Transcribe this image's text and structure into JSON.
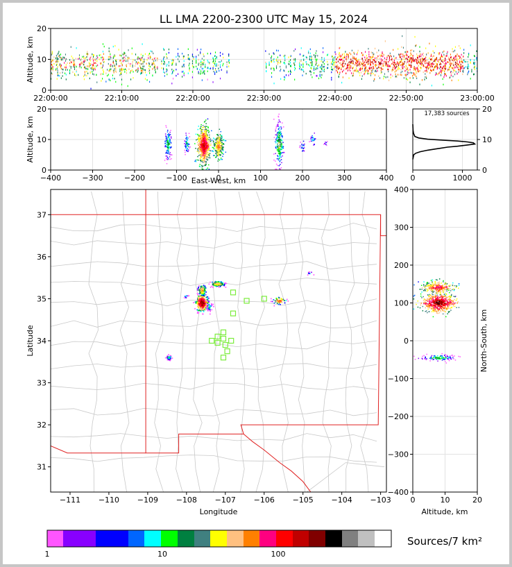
{
  "title": "LL LMA 2200-2300 UTC May 15, 2024",
  "time_panel": {
    "ylabel": "Altitude, km",
    "yticks": [
      "0",
      "10",
      "20"
    ],
    "xticks": [
      "22:00:00",
      "22:10:00",
      "22:20:00",
      "22:30:00",
      "22:40:00",
      "22:50:00",
      "23:00:00"
    ]
  },
  "ew_panel": {
    "ylabel": "Altitude, km",
    "xlabel": "East-West, km",
    "yticks": [
      "0",
      "10",
      "20"
    ],
    "xticks": [
      "−400",
      "−300",
      "−200",
      "−100",
      "0",
      "100",
      "200",
      "300",
      "400"
    ]
  },
  "hist_panel": {
    "annotation": "17,383 sources",
    "xticks": [
      "0",
      "1000"
    ],
    "yticks": [
      "0",
      "10",
      "20"
    ]
  },
  "map_panel": {
    "xlabel": "Longitude",
    "ylabel": "Latitude",
    "xticks": [
      "−111",
      "−110",
      "−109",
      "−108",
      "−107",
      "−106",
      "−105",
      "−104",
      "−103"
    ],
    "yticks": [
      "31",
      "32",
      "33",
      "34",
      "35",
      "36",
      "37"
    ]
  },
  "ns_panel": {
    "xlabel": "Altitude, km",
    "ylabel": "North-South, km",
    "xticks": [
      "0",
      "10",
      "20"
    ],
    "yticks": [
      "−400",
      "−300",
      "−200",
      "−100",
      "0",
      "100",
      "200",
      "300",
      "400"
    ]
  },
  "colorbar": {
    "label": "Sources/7 km²",
    "tick_labels": [
      "1",
      "10",
      "100"
    ],
    "colors": [
      "#ff55ff",
      "#8800ff",
      "#0000ff",
      "#0066ff",
      "#00ffff",
      "#00ff00",
      "#008040",
      "#408080",
      "#ffff00",
      "#ffc080",
      "#ff8000",
      "#ff0080",
      "#ff0000",
      "#c00000",
      "#800000",
      "#000000",
      "#808080",
      "#c0c0c0",
      "#ffffff"
    ]
  },
  "chart_data": [
    {
      "type": "scatter",
      "panel": "altitude-time",
      "title": "LL LMA 2200-2300 UTC May 15, 2024",
      "ylabel": "Altitude, km",
      "xlim": [
        "22:00:00",
        "23:00:00"
      ],
      "ylim": [
        0,
        20
      ],
      "active_time_ranges": [
        [
          "22:00:00",
          "22:25:30"
        ],
        [
          "22:30:00",
          "23:00:00"
        ]
      ],
      "typical_altitude_km": [
        5,
        12
      ]
    },
    {
      "type": "scatter",
      "panel": "altitude-east-west",
      "xlabel": "East-West, km",
      "ylabel": "Altitude, km",
      "xlim": [
        -400,
        400
      ],
      "ylim": [
        0,
        20
      ],
      "clusters_x_km": [
        -120,
        -75,
        -35,
        0,
        145,
        200,
        225,
        255
      ]
    },
    {
      "type": "line",
      "panel": "altitude-histogram",
      "annotation": "17,383 sources",
      "xlim": [
        0,
        1300
      ],
      "ylim": [
        0,
        20
      ],
      "x": [
        0,
        20,
        60,
        150,
        300,
        500,
        700,
        900,
        1100,
        1250,
        1220,
        1100,
        900,
        600,
        300,
        120,
        40,
        15,
        5,
        0
      ],
      "y": [
        3.5,
        5,
        5.5,
        6,
        6.5,
        7,
        7.5,
        7.8,
        8.2,
        8.5,
        8.9,
        9.2,
        9.5,
        9.8,
        10.1,
        10.5,
        11,
        12,
        13,
        15
      ]
    },
    {
      "type": "scatter",
      "panel": "plan-view",
      "xlabel": "Longitude",
      "ylabel": "Latitude",
      "xlim": [
        -111.5,
        -102.85
      ],
      "ylim": [
        30.4,
        37.6
      ],
      "source_clusters": [
        {
          "lon": -107.6,
          "lat": 34.9
        },
        {
          "lon": -107.6,
          "lat": 35.2
        },
        {
          "lon": -107.2,
          "lat": 35.35
        },
        {
          "lon": -108.45,
          "lat": 33.6
        },
        {
          "lon": -105.6,
          "lat": 34.95
        },
        {
          "lon": -104.8,
          "lat": 35.6
        },
        {
          "lon": -108,
          "lat": 35.05
        },
        {
          "lon": -107.4,
          "lat": 34.8
        }
      ],
      "stations": [
        {
          "lon": -107.35,
          "lat": 34.0
        },
        {
          "lon": -107.2,
          "lat": 34.1
        },
        {
          "lon": -107.05,
          "lat": 34.05
        },
        {
          "lon": -106.85,
          "lat": 34.0
        },
        {
          "lon": -107.05,
          "lat": 34.2
        },
        {
          "lon": -107.0,
          "lat": 33.9
        },
        {
          "lon": -106.95,
          "lat": 33.75
        },
        {
          "lon": -107.05,
          "lat": 33.6
        },
        {
          "lon": -107.2,
          "lat": 33.95
        },
        {
          "lon": -106.8,
          "lat": 35.15
        },
        {
          "lon": -106.45,
          "lat": 34.95
        },
        {
          "lon": -106.0,
          "lat": 35.0
        },
        {
          "lon": -106.8,
          "lat": 34.65
        }
      ]
    },
    {
      "type": "scatter",
      "panel": "north-south-altitude",
      "xlabel": "Altitude, km",
      "ylabel": "North-South, km",
      "xlim": [
        0,
        20
      ],
      "ylim": [
        -400,
        400
      ],
      "clusters_y_km": [
        140,
        100,
        -45
      ]
    }
  ]
}
